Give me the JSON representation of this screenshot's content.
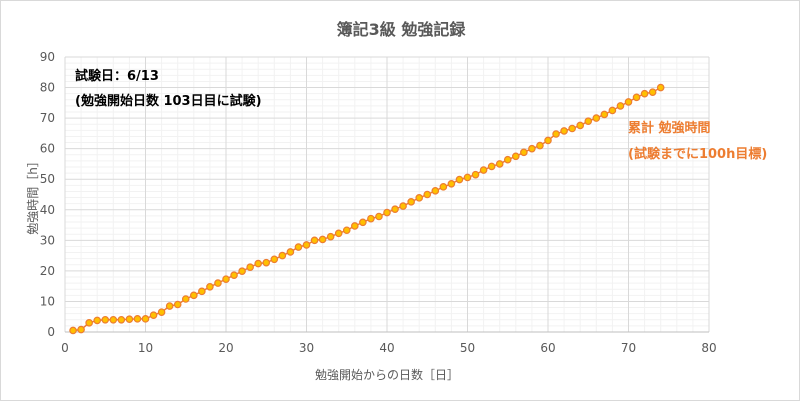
{
  "chart_data": {
    "type": "scatter",
    "title": "簿記3級 勉強記録",
    "xlabel": "勉強開始からの日数［日］",
    "ylabel": "勉強時間［h］",
    "xlim": [
      0,
      80
    ],
    "ylim": [
      0,
      90
    ],
    "xticks": [
      0,
      10,
      20,
      30,
      40,
      50,
      60,
      70,
      80
    ],
    "yticks": [
      0,
      10,
      20,
      30,
      40,
      50,
      60,
      70,
      80,
      90
    ],
    "grid": true,
    "series": [
      {
        "color": "#ed7d31",
        "marker_color": "#ffc000",
        "x": [
          1,
          2,
          3,
          4,
          5,
          6,
          7,
          8,
          9,
          10,
          11,
          12,
          13,
          14,
          15,
          16,
          17,
          18,
          19,
          20,
          21,
          22,
          23,
          24,
          25,
          26,
          27,
          28,
          29,
          30,
          31,
          32,
          33,
          34,
          35,
          36,
          37,
          38,
          39,
          40,
          41,
          42,
          43,
          44,
          45,
          46,
          47,
          48,
          49,
          50,
          51,
          52,
          53,
          54,
          55,
          56,
          57,
          58,
          59,
          60,
          61,
          62,
          63,
          64,
          65,
          66,
          67,
          68,
          69,
          70,
          71,
          72,
          73,
          74
        ],
        "y": [
          0.5,
          0.8,
          3,
          3.8,
          4,
          4,
          4,
          4.2,
          4.3,
          4.3,
          5.5,
          6.5,
          8.5,
          9,
          10.8,
          12,
          13.3,
          14.8,
          16,
          17.3,
          18.6,
          19.9,
          21.2,
          22.4,
          22.7,
          23.8,
          25,
          26.2,
          27.8,
          28.5,
          30,
          30.3,
          31.2,
          32.3,
          33.3,
          34.7,
          35.9,
          37.1,
          37.8,
          39.1,
          40.2,
          41.2,
          42.6,
          43.9,
          45,
          46.2,
          47.5,
          48.5,
          49.9,
          50.6,
          51.5,
          53,
          54.2,
          55,
          56.4,
          57.5,
          58.8,
          60,
          61,
          62.7,
          64.8,
          65.8,
          66.6,
          67.6,
          69,
          70,
          71.2,
          72.5,
          74,
          75.3,
          76.8,
          78,
          78.5,
          80
        ]
      }
    ],
    "annotations": [
      {
        "id": "exam-date",
        "text": "試験日：6/13"
      },
      {
        "id": "exam-day-note",
        "text": "(勉強開始日数 103日目に試験)"
      },
      {
        "id": "series-label",
        "text": "累計 勉強時間"
      },
      {
        "id": "target-note",
        "text": "(試験までに100h目標)"
      }
    ]
  }
}
